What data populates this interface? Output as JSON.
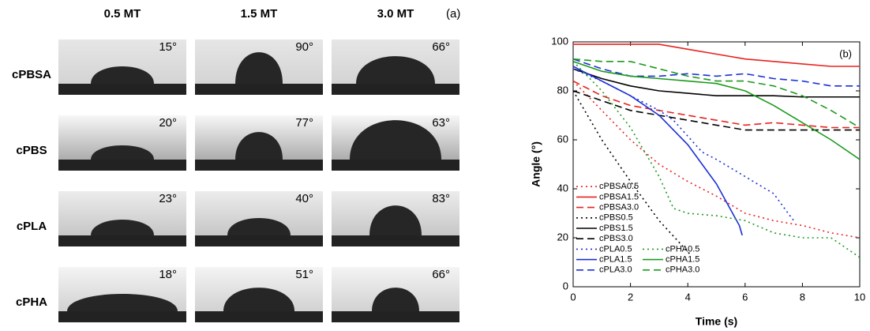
{
  "panel_a": {
    "label": "(a)",
    "columns": [
      "0.5 MT",
      "1.5 MT",
      "3.0 MT"
    ],
    "rows": [
      {
        "name": "cPBSA",
        "angles": [
          "15°",
          "90°",
          "66°"
        ]
      },
      {
        "name": "cPBS",
        "angles": [
          "20°",
          "77°",
          "63°"
        ]
      },
      {
        "name": "cPLA",
        "angles": [
          "23°",
          "40°",
          "83°"
        ]
      },
      {
        "name": "cPHA",
        "angles": [
          "18°",
          "51°",
          "66°"
        ]
      }
    ]
  },
  "chart_data": {
    "type": "line",
    "annotation": "(b)",
    "xlabel": "Time (s)",
    "ylabel": "Angle (°)",
    "xlim": [
      0,
      10
    ],
    "ylim": [
      0,
      100
    ],
    "xticks": [
      0,
      2,
      4,
      6,
      8,
      10
    ],
    "yticks": [
      0,
      20,
      40,
      60,
      80,
      100
    ],
    "legend": "lower left",
    "series": [
      {
        "name": "cPBSA0.5",
        "color": "#e8231f",
        "style": "dotted",
        "x": [
          0,
          1,
          2,
          3,
          4,
          5,
          6,
          7,
          8,
          9,
          10
        ],
        "values": [
          84,
          72,
          60,
          50,
          43,
          37,
          30,
          27,
          25,
          22,
          20
        ]
      },
      {
        "name": "cPBSA1.5",
        "color": "#e8231f",
        "style": "solid",
        "x": [
          0,
          1,
          2,
          3,
          4,
          5,
          6,
          7,
          8,
          9,
          10
        ],
        "values": [
          99,
          99,
          99,
          99,
          97,
          95,
          93,
          92,
          91,
          90,
          90
        ]
      },
      {
        "name": "cPBSA3.0",
        "color": "#e8231f",
        "style": "dashed",
        "x": [
          0,
          1,
          2,
          3,
          4,
          5,
          6,
          7,
          8,
          9,
          10
        ],
        "values": [
          84,
          78,
          74,
          72,
          70,
          68,
          66,
          67,
          66,
          65,
          65
        ]
      },
      {
        "name": "cPBS0.5",
        "color": "#000000",
        "style": "dotted",
        "x": [
          0,
          1,
          2,
          3,
          4.1
        ],
        "values": [
          80,
          60,
          43,
          27,
          13
        ]
      },
      {
        "name": "cPBS1.5",
        "color": "#000000",
        "style": "solid",
        "x": [
          0,
          1,
          2,
          3,
          4,
          5,
          6,
          7,
          8,
          9,
          10
        ],
        "values": [
          89,
          85,
          82,
          80,
          79,
          78,
          78,
          78,
          77.5,
          77.5,
          77.5
        ]
      },
      {
        "name": "cPBS3.0",
        "color": "#000000",
        "style": "dashed",
        "x": [
          0,
          1,
          2,
          3,
          4,
          5,
          6,
          8,
          10
        ],
        "values": [
          80,
          76,
          72,
          70,
          68,
          66,
          64,
          64,
          64
        ]
      },
      {
        "name": "cPLA0.5",
        "color": "#1a2fd6",
        "style": "dotted",
        "x": [
          0,
          1,
          2,
          3,
          3.5,
          4.5,
          5,
          6,
          7,
          7.5,
          7.7
        ],
        "values": [
          89,
          84,
          78,
          72,
          68,
          55,
          52,
          45,
          38,
          30,
          27
        ]
      },
      {
        "name": "cPLA1.5",
        "color": "#1a2fd6",
        "style": "solid",
        "x": [
          0,
          1,
          2,
          3,
          4,
          5,
          5.8,
          5.9
        ],
        "values": [
          90,
          84,
          78,
          70,
          58,
          42,
          25,
          21
        ]
      },
      {
        "name": "cPLA3.0",
        "color": "#1a2fd6",
        "style": "dashed",
        "x": [
          0,
          1,
          2,
          3,
          4,
          5,
          6,
          7,
          8,
          9,
          10
        ],
        "values": [
          93,
          89,
          86,
          86,
          87,
          86,
          87,
          85,
          84,
          82,
          82
        ]
      },
      {
        "name": "cPHA0.5",
        "color": "#1c9a1c",
        "style": "dotted",
        "x": [
          0,
          1,
          2,
          3,
          3.5,
          4,
          5,
          6,
          7,
          8,
          9,
          10
        ],
        "values": [
          92,
          80,
          65,
          45,
          32,
          30,
          29,
          27,
          22,
          20,
          20,
          12
        ]
      },
      {
        "name": "cPHA1.5",
        "color": "#1c9a1c",
        "style": "solid",
        "x": [
          0,
          1,
          2,
          3,
          4,
          5,
          6,
          7,
          8,
          9,
          10
        ],
        "values": [
          92,
          88,
          86,
          85,
          84,
          83,
          80,
          74,
          67,
          60,
          52
        ]
      },
      {
        "name": "cPHA3.0",
        "color": "#1c9a1c",
        "style": "dashed",
        "x": [
          0,
          1,
          2,
          3,
          4,
          5,
          6,
          7,
          8,
          9,
          10
        ],
        "values": [
          93,
          92,
          92,
          89,
          86,
          84,
          84,
          82,
          78,
          72,
          65
        ]
      }
    ]
  }
}
